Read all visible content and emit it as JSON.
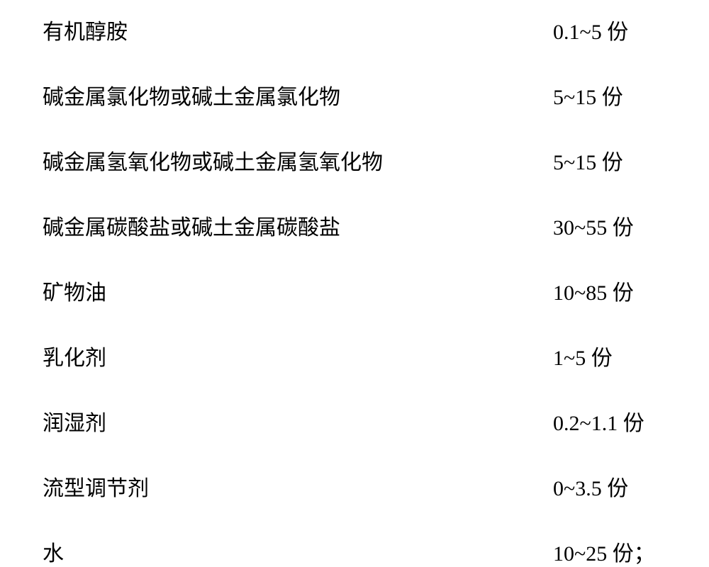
{
  "document": {
    "type": "ingredient-table",
    "font_family": "KaiTi",
    "font_size": 30,
    "text_color": "#000000",
    "background_color": "#ffffff",
    "row_spacing": 48,
    "ingredients": [
      {
        "name": "有机醇胺",
        "amount": "0.1~5 份"
      },
      {
        "name": "碱金属氯化物或碱土金属氯化物",
        "amount": "5~15 份"
      },
      {
        "name": "碱金属氢氧化物或碱土金属氢氧化物",
        "amount": "5~15 份"
      },
      {
        "name": "碱金属碳酸盐或碱土金属碳酸盐",
        "amount": "30~55 份"
      },
      {
        "name": "矿物油",
        "amount": "10~85 份"
      },
      {
        "name": "乳化剂",
        "amount": "1~5 份"
      },
      {
        "name": "润湿剂",
        "amount": "0.2~1.1 份"
      },
      {
        "name": "流型调节剂",
        "amount": "0~3.5 份"
      },
      {
        "name": "水",
        "amount": "10~25 份；"
      }
    ]
  }
}
